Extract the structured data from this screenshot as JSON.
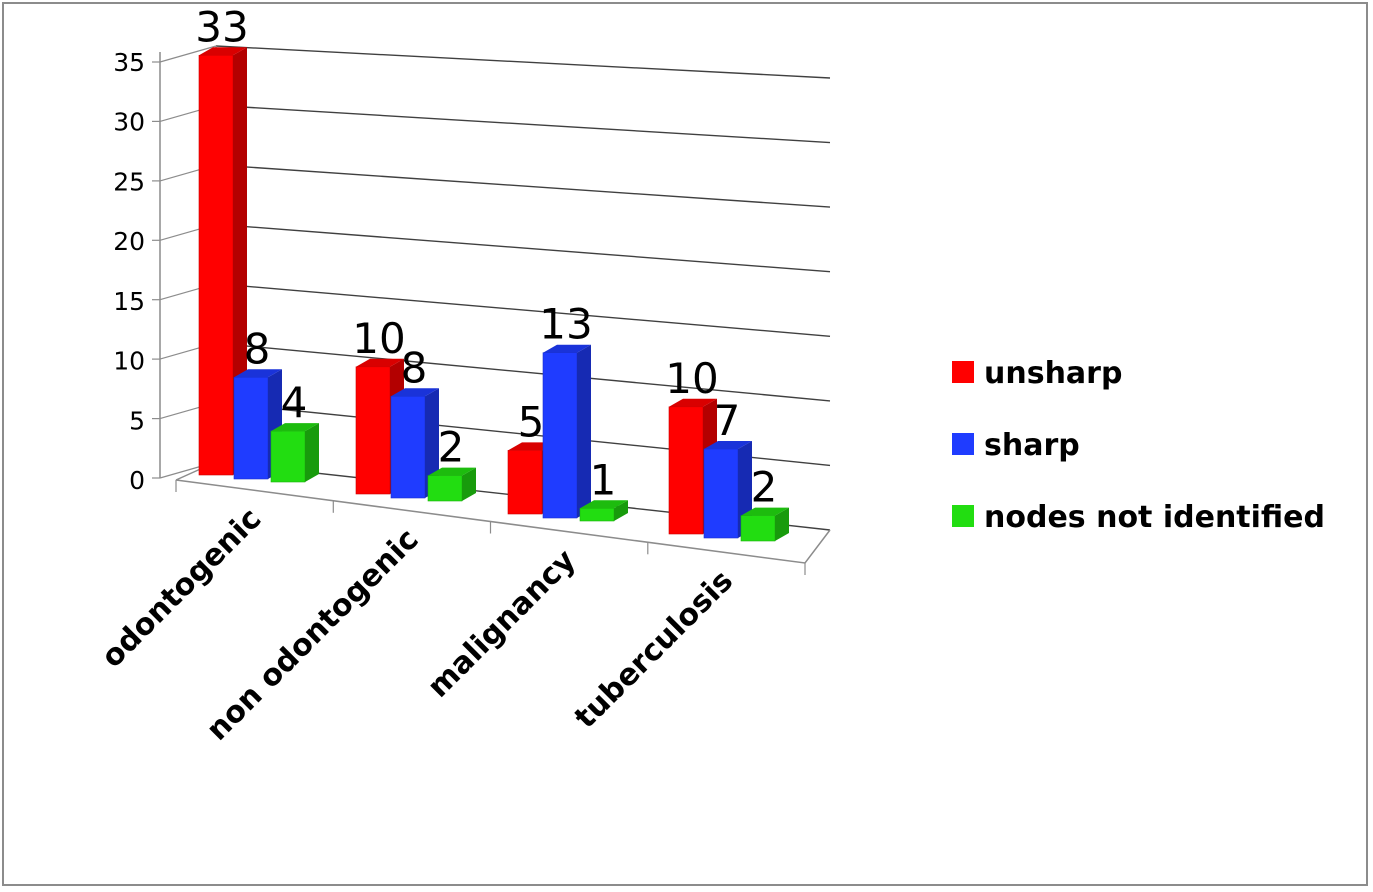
{
  "chart_data": {
    "type": "bar",
    "subtype": "3d-clustered-column",
    "title": "",
    "xlabel": "",
    "ylabel": "",
    "ylim": [
      0,
      35
    ],
    "yticks": [
      "0",
      "5",
      "10",
      "15",
      "20",
      "25",
      "30",
      "35"
    ],
    "grid": true,
    "legend_position": "right",
    "categories": [
      "odontogenic",
      "non odontogenic",
      "malignancy",
      "tuberculosis"
    ],
    "series": [
      {
        "name": "unsharp",
        "color": "#ff0000",
        "values": [
          33,
          10,
          5,
          10
        ]
      },
      {
        "name": "sharp",
        "color": "#1f3cff",
        "values": [
          8,
          8,
          13,
          7
        ]
      },
      {
        "name": "nodes not identified",
        "color": "#22dd11",
        "values": [
          4,
          2,
          1,
          2
        ]
      }
    ],
    "data_labels": [
      [
        "33",
        "10",
        "5",
        "10"
      ],
      [
        "8",
        "8",
        "13",
        "7"
      ],
      [
        "4",
        "2",
        "1",
        "2"
      ]
    ]
  }
}
